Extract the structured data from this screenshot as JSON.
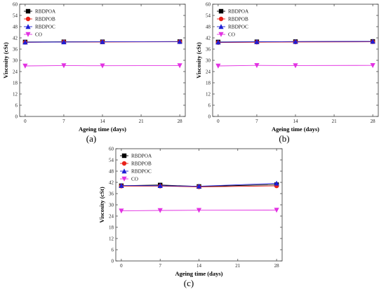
{
  "colors": {
    "RBDPOA": "#000000",
    "RBDPOB": "#e8221b",
    "RBDPOC": "#1f1fd6",
    "CO": "#e232e2",
    "axis": "#333333"
  },
  "chart_data": [
    {
      "panel": "(a)",
      "type": "line",
      "xlabel": "Ageing time (days)",
      "ylabel": "Viscosity (cSt)",
      "x": [
        0,
        7,
        14,
        28
      ],
      "xticks": [
        0,
        7,
        14,
        21,
        28
      ],
      "yticks": [
        0,
        6,
        12,
        18,
        24,
        30,
        36,
        42,
        48,
        54,
        60
      ],
      "xlim": [
        -1,
        29
      ],
      "ylim": [
        0,
        60
      ],
      "legend": "top-left",
      "series": [
        {
          "name": "RBDPOA",
          "marker": "square",
          "values": [
            39.8,
            39.9,
            39.9,
            40.0
          ]
        },
        {
          "name": "RBDPOB",
          "marker": "circle",
          "values": [
            39.6,
            39.8,
            39.8,
            39.9
          ]
        },
        {
          "name": "RBDPOC",
          "marker": "triangle-up",
          "values": [
            39.7,
            39.8,
            39.9,
            40.0
          ]
        },
        {
          "name": "CO",
          "marker": "triangle-down",
          "values": [
            27.0,
            27.2,
            27.1,
            27.2
          ]
        }
      ]
    },
    {
      "panel": "(b)",
      "type": "line",
      "xlabel": "Ageing time (days)",
      "ylabel": "Viscosity (cSt)",
      "x": [
        0,
        7,
        14,
        28
      ],
      "xticks": [
        0,
        7,
        14,
        21,
        28
      ],
      "yticks": [
        0,
        6,
        12,
        18,
        24,
        30,
        36,
        42,
        48,
        54,
        60
      ],
      "xlim": [
        -1,
        29
      ],
      "ylim": [
        0,
        60
      ],
      "legend": "top-left",
      "series": [
        {
          "name": "RBDPOA",
          "marker": "square",
          "values": [
            39.8,
            39.9,
            40.0,
            40.1
          ]
        },
        {
          "name": "RBDPOB",
          "marker": "circle",
          "values": [
            39.5,
            39.7,
            39.8,
            39.9
          ]
        },
        {
          "name": "RBDPOC",
          "marker": "triangle-up",
          "values": [
            39.7,
            39.9,
            40.0,
            40.1
          ]
        },
        {
          "name": "CO",
          "marker": "triangle-down",
          "values": [
            27.0,
            27.3,
            27.2,
            27.3
          ]
        }
      ]
    },
    {
      "panel": "(c)",
      "type": "line",
      "xlabel": "Ageing time (days)",
      "ylabel": "Viscosity (cSt)",
      "x": [
        0,
        7,
        14,
        28
      ],
      "xticks": [
        0,
        7,
        14,
        21,
        28
      ],
      "yticks": [
        0,
        6,
        12,
        18,
        24,
        30,
        36,
        42,
        48,
        54,
        60
      ],
      "xlim": [
        -1,
        29
      ],
      "ylim": [
        0,
        60
      ],
      "legend": "top-left",
      "series": [
        {
          "name": "RBDPOA",
          "marker": "square",
          "values": [
            40.2,
            40.6,
            39.8,
            40.8
          ]
        },
        {
          "name": "RBDPOB",
          "marker": "circle",
          "values": [
            40.0,
            40.0,
            39.6,
            40.1
          ]
        },
        {
          "name": "RBDPOC",
          "marker": "triangle-up",
          "values": [
            40.3,
            40.2,
            39.9,
            41.5
          ]
        },
        {
          "name": "CO",
          "marker": "triangle-down",
          "values": [
            26.8,
            27.0,
            27.1,
            27.2
          ]
        }
      ]
    }
  ]
}
